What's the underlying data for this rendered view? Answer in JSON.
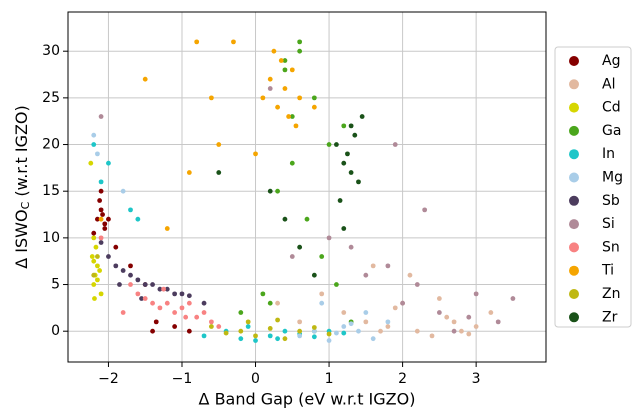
{
  "chart_data": {
    "type": "scatter",
    "xlabel": "Δ Band Gap (eV w.r.t IGZO)",
    "ylabel": {
      "main": "Δ ISWO",
      "sub": "C",
      "rest": " (w.r.t IGZO)"
    },
    "xlim": [
      -2.55,
      3.95
    ],
    "ylim": [
      -3.3,
      34.2
    ],
    "xticks": [
      {
        "value": -2,
        "label": "−2"
      },
      {
        "value": -1,
        "label": "−1"
      },
      0,
      1,
      2,
      3
    ],
    "yticks": [
      0,
      5,
      10,
      15,
      20,
      25,
      30
    ],
    "grid": true,
    "legend": "right",
    "series": [
      {
        "name": "Ag",
        "color": "#850000",
        "x": [
          -2.15,
          -2.1,
          -2.05,
          -2.12,
          -2.08,
          -2.2,
          -2.0,
          -1.9,
          -1.7,
          -1.5,
          -1.35,
          -1.1,
          -0.9,
          -1.4,
          -2.1,
          -2.05
        ],
        "values": [
          12,
          13,
          11.5,
          14,
          12.5,
          10.5,
          12,
          9,
          7,
          5,
          1,
          0.5,
          0,
          0,
          15,
          11
        ]
      },
      {
        "name": "Al",
        "color": "#e2b9a0",
        "x": [
          1.2,
          1.5,
          1.8,
          2.0,
          2.2,
          2.4,
          2.6,
          2.8,
          3.0,
          3.2,
          2.9,
          2.5,
          1.9,
          1.6,
          0.9,
          0.6,
          2.1,
          2.7,
          1.7,
          0.3
        ],
        "values": [
          2,
          1,
          0.5,
          3,
          0,
          -0.5,
          1.5,
          0,
          0.5,
          2,
          -0.3,
          3.5,
          2.5,
          7,
          4,
          1,
          6,
          1,
          0,
          3
        ]
      },
      {
        "name": "Cd",
        "color": "#d6d600",
        "x": [
          -2.2,
          -2.18,
          -2.15,
          -2.22,
          -2.17,
          -2.12,
          -2.2,
          -2.1,
          -2.15,
          -2.19,
          -2.24,
          -2.2
        ],
        "values": [
          5,
          6,
          7,
          8,
          9,
          6.5,
          7.5,
          4,
          5.5,
          3.5,
          18,
          10
        ]
      },
      {
        "name": "Ga",
        "color": "#4ba61c",
        "x": [
          0.4,
          0.6,
          0.8,
          1.0,
          1.2,
          0.5,
          0.3,
          0.7,
          0.9,
          1.1,
          0.2,
          -0.2,
          0.4,
          0.6,
          1.3,
          0.8,
          0.5,
          0.1
        ],
        "values": [
          28,
          30,
          25,
          20,
          22,
          18,
          15,
          12,
          8,
          5,
          3,
          2,
          29,
          31,
          1,
          0,
          23,
          4
        ]
      },
      {
        "name": "In",
        "color": "#1ec6c8",
        "x": [
          -0.7,
          -0.4,
          -0.2,
          0,
          0.2,
          0.4,
          0.6,
          0.8,
          1.0,
          1.2,
          -0.1,
          0.3,
          -2.2,
          -2.0,
          -1.7,
          -1.6,
          -2.1
        ],
        "values": [
          -0.5,
          0,
          -0.8,
          -1,
          -0.5,
          0,
          -0.3,
          -0.6,
          0,
          -0.2,
          0.5,
          -0.8,
          20,
          18,
          13,
          12,
          16
        ]
      },
      {
        "name": "Mg",
        "color": "#a9cde8",
        "x": [
          0.6,
          0.8,
          1.0,
          1.2,
          1.4,
          1.6,
          1.8,
          1.1,
          0.9,
          1.5,
          -2.2,
          -2.15,
          -1.8,
          1.3
        ],
        "values": [
          -0.5,
          0,
          -1,
          0.5,
          0,
          -0.8,
          1,
          -0.2,
          3,
          2,
          21,
          19,
          15,
          0.8
        ]
      },
      {
        "name": "Sb",
        "color": "#4c3c5e",
        "x": [
          -2.0,
          -1.9,
          -1.8,
          -1.7,
          -1.6,
          -1.5,
          -1.4,
          -1.3,
          -1.2,
          -1.1,
          -1.0,
          -0.9,
          -2.1,
          -1.85,
          -1.55,
          -0.7
        ],
        "values": [
          8,
          7,
          6.5,
          6,
          5.5,
          5,
          5,
          4.5,
          4.5,
          4,
          4,
          3.8,
          9.5,
          5,
          3.5,
          3
        ]
      },
      {
        "name": "Si",
        "color": "#b08a98",
        "x": [
          0.5,
          1.0,
          1.5,
          2.0,
          2.5,
          3.0,
          3.3,
          3.5,
          2.7,
          2.2,
          1.8,
          1.3,
          -2.1,
          0.2,
          1.9,
          2.3,
          2.9
        ],
        "values": [
          8,
          10,
          6,
          3,
          2,
          4,
          1,
          3.5,
          0,
          5,
          7,
          9,
          23,
          26,
          20,
          13,
          1.5
        ]
      },
      {
        "name": "Sn",
        "color": "#f88282",
        "x": [
          -1.6,
          -1.5,
          -1.4,
          -1.3,
          -1.2,
          -1.1,
          -1.0,
          -0.9,
          -0.8,
          -0.7,
          -0.6,
          -0.5,
          -1.25,
          -0.95,
          -1.7,
          -1.8,
          -2.1
        ],
        "values": [
          4,
          3.5,
          3,
          2.5,
          3,
          2,
          2.5,
          3,
          1.5,
          2,
          1,
          0.5,
          4.5,
          1.5,
          5,
          2,
          10
        ]
      },
      {
        "name": "Ti",
        "color": "#f5a500",
        "x": [
          0.1,
          0.2,
          0.3,
          0.4,
          0.5,
          0.6,
          0.35,
          0.45,
          0.25,
          0.55,
          -0.3,
          -0.8,
          -1.5,
          -0.9,
          -0.5,
          0,
          -2.1,
          -1.2,
          0.8,
          -0.6
        ],
        "values": [
          25,
          27,
          24,
          26,
          28,
          25,
          29,
          23,
          30,
          22,
          31,
          31,
          27,
          17,
          20,
          19,
          12,
          11,
          24,
          25
        ]
      },
      {
        "name": "Zn",
        "color": "#bfb812",
        "x": [
          -0.6,
          -0.4,
          -0.2,
          0,
          0.2,
          0.4,
          0.6,
          0.8,
          1.0,
          -2.2,
          -2.15,
          -0.1,
          0.3
        ],
        "values": [
          0.5,
          -0.2,
          0,
          -0.5,
          0.3,
          -0.8,
          0,
          0.4,
          -0.3,
          6,
          8,
          1,
          1.2
        ]
      },
      {
        "name": "Zr",
        "color": "#1a5219",
        "x": [
          1.1,
          1.2,
          1.3,
          1.4,
          1.25,
          1.35,
          1.15,
          1.45,
          1.3,
          0.2,
          0.4,
          0.6,
          -0.5,
          0.8,
          1.2
        ],
        "values": [
          20,
          18,
          22,
          16,
          19,
          21,
          14,
          23,
          17,
          15,
          12,
          9,
          17,
          6,
          11
        ]
      }
    ]
  }
}
